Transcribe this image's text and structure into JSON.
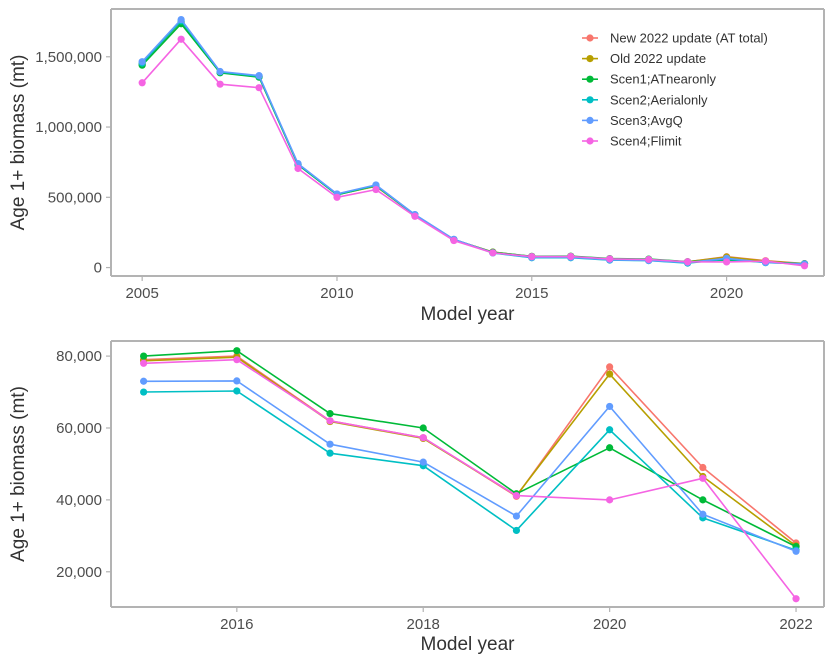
{
  "chart_data": [
    {
      "type": "line",
      "xlabel": "Model year",
      "ylabel": "Age 1+ biomass (mt)",
      "xlim": [
        2004.2,
        2022.5
      ],
      "ylim": [
        -60000,
        1840000
      ],
      "x_ticks": [
        2005,
        2010,
        2015,
        2020
      ],
      "x_tick_labels": [
        "2005",
        "2010",
        "2015",
        "2020"
      ],
      "y_ticks": [
        0,
        500000,
        1000000,
        1500000
      ],
      "y_tick_labels": [
        "0",
        "500,000",
        "1,000,000",
        "1,500,000"
      ],
      "grid": false,
      "legend": "top-right",
      "x": [
        2005,
        2006,
        2007,
        2008,
        2009,
        2010,
        2011,
        2012,
        2013,
        2014,
        2015,
        2016,
        2017,
        2018,
        2019,
        2020,
        2021,
        2022
      ],
      "series": [
        {
          "name": "New 2022 update (AT total)",
          "color": "#F8766D",
          "values": [
            1450000,
            1745000,
            1390000,
            1360000,
            735000,
            520000,
            580000,
            375000,
            200000,
            110000,
            79000,
            80000,
            62000,
            57000,
            41000,
            77000,
            49000,
            28000
          ]
        },
        {
          "name": "Old 2022 update",
          "color": "#B79F00",
          "values": [
            1445000,
            1740000,
            1388000,
            1358000,
            733000,
            519000,
            579000,
            374000,
            199000,
            110000,
            78000,
            79000,
            61500,
            57000,
            41000,
            75000,
            46000,
            27000
          ]
        },
        {
          "name": "Scen1;ATnearonly",
          "color": "#00BA38",
          "values": [
            1440000,
            1735000,
            1386000,
            1355000,
            731000,
            518000,
            583000,
            374000,
            198000,
            109000,
            80000,
            81000,
            64000,
            60000,
            41500,
            54500,
            40000,
            27000
          ]
        },
        {
          "name": "Scen2;Aerialonly",
          "color": "#00BFC4",
          "values": [
            1455000,
            1755000,
            1392000,
            1362000,
            736000,
            522000,
            585000,
            376000,
            200000,
            104000,
            70000,
            70000,
            53000,
            49500,
            31500,
            59500,
            35000,
            26000
          ]
        },
        {
          "name": "Scen3;AvgQ",
          "color": "#619CFF",
          "values": [
            1465000,
            1765000,
            1395000,
            1366000,
            740000,
            524000,
            588000,
            377000,
            201000,
            105000,
            73000,
            73000,
            55500,
            50500,
            35500,
            66000,
            36000,
            25500
          ]
        },
        {
          "name": "Scen4;Flimit",
          "color": "#F564E3",
          "values": [
            1315000,
            1625000,
            1305000,
            1280000,
            705000,
            500000,
            555000,
            365000,
            192000,
            105000,
            78000,
            79000,
            62000,
            57500,
            41200,
            40000,
            46000,
            12500
          ]
        }
      ]
    },
    {
      "type": "line",
      "xlabel": "Model year",
      "ylabel": "Age 1+ biomass (mt)",
      "xlim": [
        2014.65,
        2022.3
      ],
      "ylim": [
        10200,
        84200
      ],
      "x_ticks": [
        2016,
        2018,
        2020,
        2022
      ],
      "x_tick_labels": [
        "2016",
        "2018",
        "2020",
        "2022"
      ],
      "y_ticks": [
        20000,
        40000,
        60000,
        80000
      ],
      "y_tick_labels": [
        "20,000",
        "40,000",
        "60,000",
        "80,000"
      ],
      "grid": false,
      "x": [
        2015,
        2016,
        2017,
        2018,
        2019,
        2020,
        2021,
        2022
      ],
      "series": [
        {
          "name": "New 2022 update (AT total)",
          "color": "#F8766D",
          "values": [
            79000,
            80000,
            62000,
            57300,
            41000,
            77000,
            49000,
            28000
          ]
        },
        {
          "name": "Old 2022 update",
          "color": "#B79F00",
          "values": [
            78700,
            79700,
            61800,
            57100,
            41200,
            75000,
            46500,
            27200
          ]
        },
        {
          "name": "Scen1;ATnearonly",
          "color": "#00BA38",
          "values": [
            80000,
            81500,
            64000,
            60000,
            41700,
            54500,
            40000,
            27000
          ]
        },
        {
          "name": "Scen2;Aerialonly",
          "color": "#00BFC4",
          "values": [
            70000,
            70300,
            53000,
            49500,
            31500,
            59500,
            35000,
            26000
          ]
        },
        {
          "name": "Scen3;AvgQ",
          "color": "#619CFF",
          "values": [
            73000,
            73100,
            55500,
            50500,
            35500,
            66000,
            36000,
            25700
          ]
        },
        {
          "name": "Scen4;Flimit",
          "color": "#F564E3",
          "values": [
            78000,
            79000,
            62000,
            57300,
            41200,
            40000,
            46000,
            12500
          ]
        }
      ]
    }
  ]
}
